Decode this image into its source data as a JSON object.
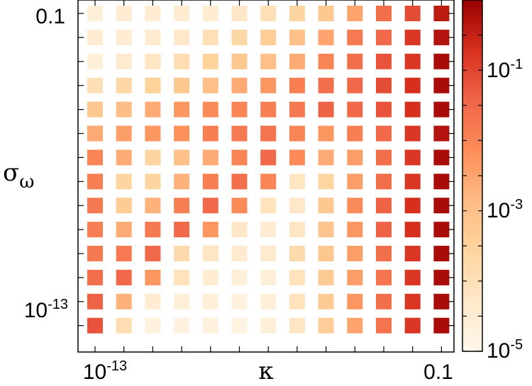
{
  "chart_data": {
    "type": "heatmap",
    "xlabel": "κ",
    "ylabel": "σ",
    "ylabel_sub": "ω",
    "x_ticks": [
      {
        "base": "10",
        "exp": "-13"
      },
      {
        "base": "0.1",
        "exp": ""
      }
    ],
    "y_ticks": [
      {
        "base": "0.1",
        "exp": ""
      },
      {
        "base": "10",
        "exp": "-13"
      }
    ],
    "x_range_log10": [
      -13,
      -1
    ],
    "y_range_log10": [
      -13,
      -1
    ],
    "colorbar": {
      "scale": "log",
      "range_log10": [
        -5,
        0
      ],
      "tick_labels": [
        {
          "base": "10",
          "exp": "-1",
          "log10": -1
        },
        {
          "base": "10",
          "exp": "-3",
          "log10": -3
        },
        {
          "base": "10",
          "exp": "-5",
          "log10": -5
        }
      ],
      "colors": [
        "#fff7ec",
        "#fee8c8",
        "#fdd49e",
        "#fdbb84",
        "#fc8d59",
        "#ef6548",
        "#d7301f",
        "#990000"
      ]
    },
    "grid_size": [
      13,
      14
    ],
    "values_log10": [
      [
        -4.6,
        -4.5,
        -4.5,
        -4.5,
        -4.5,
        -4.3,
        -4.0,
        -3.6,
        -3.2,
        -2.5,
        -1.6,
        -1.1,
        -0.4
      ],
      [
        -4.5,
        -4.5,
        -4.4,
        -4.3,
        -4.0,
        -3.7,
        -3.4,
        -3.0,
        -2.5,
        -1.8,
        -1.5,
        -0.8,
        -0.3
      ],
      [
        -4.6,
        -4.4,
        -4.2,
        -3.9,
        -3.5,
        -3.2,
        -3.0,
        -2.6,
        -2.0,
        -1.6,
        -1.2,
        -0.8,
        -0.2
      ],
      [
        -4.0,
        -3.7,
        -3.5,
        -3.2,
        -3.0,
        -2.6,
        -2.3,
        -1.9,
        -1.6,
        -1.5,
        -1.1,
        -0.7,
        -0.2
      ],
      [
        -3.2,
        -2.9,
        -2.6,
        -2.3,
        -2.1,
        -2.0,
        -1.9,
        -1.8,
        -1.4,
        -1.5,
        -1.2,
        -0.7,
        -0.2
      ],
      [
        -2.6,
        -2.4,
        -2.3,
        -2.2,
        -1.9,
        -1.8,
        -1.7,
        -2.0,
        -2.3,
        -1.9,
        -1.5,
        -0.8,
        -0.3
      ],
      [
        -2.0,
        -2.6,
        -3.6,
        -3.0,
        -2.6,
        -2.0,
        -1.5,
        -2.1,
        -2.6,
        -2.4,
        -1.6,
        -0.8,
        -0.2
      ],
      [
        -1.9,
        -3.6,
        -3.6,
        -2.7,
        -1.9,
        -1.6,
        -2.0,
        -4.2,
        -3.6,
        -2.4,
        -1.6,
        -0.8,
        -0.2
      ],
      [
        -1.8,
        -3.3,
        -2.7,
        -1.9,
        -1.5,
        -2.1,
        -4.1,
        -4.3,
        -3.2,
        -2.1,
        -1.4,
        -0.7,
        -0.2
      ],
      [
        -1.9,
        -2.6,
        -1.8,
        -1.5,
        -2.3,
        -4.3,
        -4.5,
        -4.2,
        -3.1,
        -2.3,
        -1.4,
        -0.7,
        -0.2
      ],
      [
        -1.8,
        -1.8,
        -1.5,
        -3.8,
        -4.2,
        -4.4,
        -4.4,
        -3.8,
        -3.2,
        -2.4,
        -1.6,
        -0.8,
        -0.2
      ],
      [
        -1.6,
        -1.5,
        -2.3,
        -4.1,
        -4.5,
        -4.6,
        -4.6,
        -4.1,
        -3.3,
        -2.4,
        -1.7,
        -0.8,
        -0.2
      ],
      [
        -1.4,
        -2.7,
        -4.5,
        -4.6,
        -4.6,
        -4.7,
        -4.6,
        -4.1,
        -3.3,
        -2.3,
        -1.6,
        -0.8,
        -0.2
      ],
      [
        -1.2,
        -3.9,
        -4.7,
        -4.7,
        -4.7,
        -4.8,
        -4.6,
        -4.2,
        -3.4,
        -2.5,
        -1.7,
        -0.8,
        -0.2
      ]
    ]
  }
}
